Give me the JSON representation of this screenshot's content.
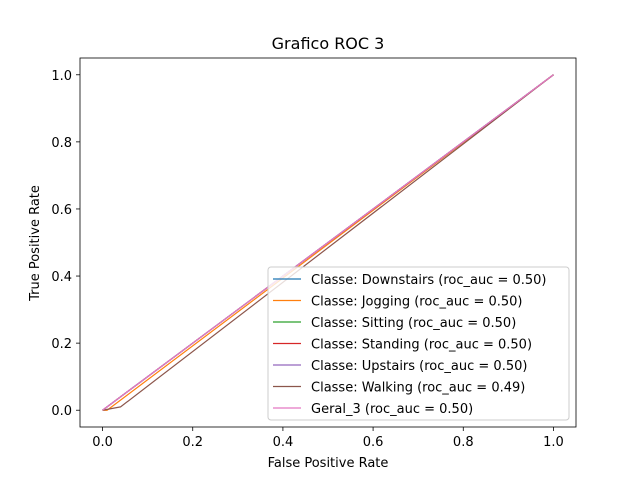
{
  "chart_data": {
    "type": "line",
    "title": "Grafico ROC 3",
    "xlabel": "False Positive Rate",
    "ylabel": "True Positive Rate",
    "xlim": [
      -0.05,
      1.05
    ],
    "ylim": [
      -0.05,
      1.05
    ],
    "xticks": [
      0.0,
      0.2,
      0.4,
      0.6,
      0.8,
      1.0
    ],
    "yticks": [
      0.0,
      0.2,
      0.4,
      0.6,
      0.8,
      1.0
    ],
    "xtick_labels": [
      "0.0",
      "0.2",
      "0.4",
      "0.6",
      "0.8",
      "1.0"
    ],
    "ytick_labels": [
      "0.0",
      "0.2",
      "0.4",
      "0.6",
      "0.8",
      "1.0"
    ],
    "grid": false,
    "legend_position": "lower-right",
    "series": [
      {
        "name": "Classe: Downstairs (roc_auc = 0.50)",
        "color": "#1f77b4",
        "x": [
          0,
          1
        ],
        "y": [
          0,
          1
        ]
      },
      {
        "name": "Classe: Jogging (roc_auc = 0.50)",
        "color": "#ff7f0e",
        "x": [
          0,
          0.01,
          1
        ],
        "y": [
          0,
          0,
          1
        ]
      },
      {
        "name": "Classe: Sitting (roc_auc = 0.50)",
        "color": "#2ca02c",
        "x": [
          0,
          1
        ],
        "y": [
          0,
          1
        ]
      },
      {
        "name": "Classe: Standing (roc_auc = 0.50)",
        "color": "#d62728",
        "x": [
          0,
          1
        ],
        "y": [
          0,
          1
        ]
      },
      {
        "name": "Classe: Upstairs (roc_auc = 0.50)",
        "color": "#9467bd",
        "x": [
          0,
          1
        ],
        "y": [
          0,
          1
        ]
      },
      {
        "name": "Classe: Walking (roc_auc = 0.49)",
        "color": "#8c564b",
        "x": [
          0,
          0.04,
          1
        ],
        "y": [
          0,
          0.01,
          1
        ]
      },
      {
        "name": "Geral_3 (roc_auc = 0.50)",
        "color": "#e377c2",
        "x": [
          0,
          1
        ],
        "y": [
          0,
          1
        ]
      }
    ]
  }
}
